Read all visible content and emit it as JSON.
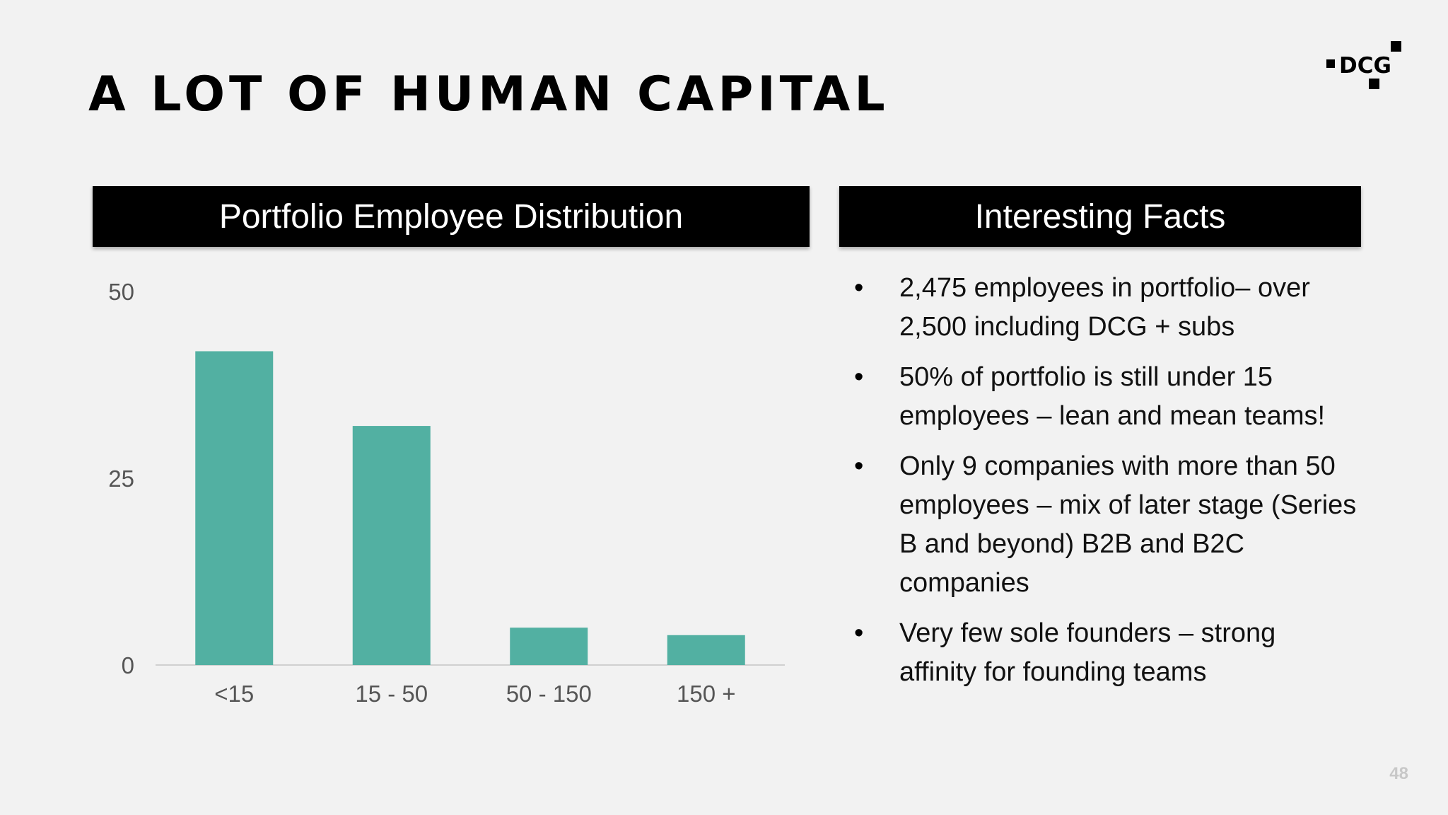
{
  "slide": {
    "title": "A LOT OF HUMAN CAPITAL",
    "page_number": "48",
    "logo_text": "DCG"
  },
  "chart_header": "Portfolio Employee Distribution",
  "facts_header": "Interesting Facts",
  "facts": [
    "2,475 employees in portfolio– over 2,500 including DCG + subs",
    "50% of portfolio is still under 15 employees – lean and mean teams!",
    "Only 9 companies with more than 50 employees – mix of later stage (Series B and beyond) B2B and B2C companies",
    "Very few sole founders – strong affinity for founding teams"
  ],
  "bullet_glyph": "•",
  "colors": {
    "bar": "#52b0a2",
    "background": "#f2f2f2",
    "header_bg": "#000000",
    "header_text": "#ffffff",
    "axis_text": "#555555"
  },
  "chart_data": {
    "type": "bar",
    "categories": [
      "<15",
      "15 - 50",
      "50 - 150",
      "150 +"
    ],
    "values": [
      42,
      32,
      5,
      4
    ],
    "title": "Portfolio Employee Distribution",
    "xlabel": "",
    "ylabel": "",
    "ylim": [
      0,
      50
    ],
    "yticks": [
      0,
      25,
      50
    ],
    "grid": false
  }
}
